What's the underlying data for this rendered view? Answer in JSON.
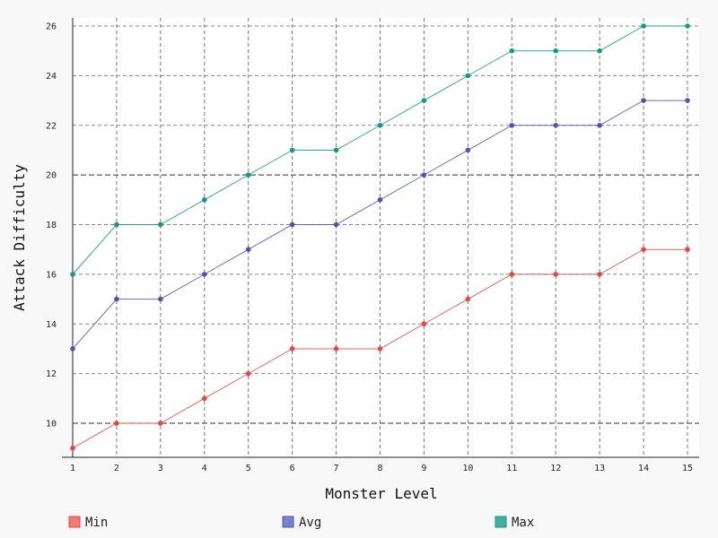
{
  "chart_data": {
    "type": "line",
    "title": "",
    "xlabel": "Monster Level",
    "ylabel": "Attack Difficulty",
    "x": [
      1,
      2,
      3,
      4,
      5,
      6,
      7,
      8,
      9,
      10,
      11,
      12,
      13,
      14,
      15
    ],
    "xlim": [
      1,
      15
    ],
    "ylim": [
      9,
      26
    ],
    "yticks": [
      10,
      12,
      14,
      16,
      18,
      20,
      22,
      24,
      26
    ],
    "major_guides": [
      10,
      20
    ],
    "grid": true,
    "legend_position": "bottom",
    "series": [
      {
        "name": "Min",
        "color": "#e8473f",
        "values": [
          9,
          10,
          10,
          11,
          12,
          13,
          13,
          13,
          14,
          15,
          16,
          16,
          16,
          17,
          17
        ]
      },
      {
        "name": "Avg",
        "color": "#4b55b5",
        "values": [
          13,
          15,
          15,
          16,
          17,
          18,
          18,
          19,
          20,
          21,
          22,
          22,
          22,
          23,
          23
        ]
      },
      {
        "name": "Max",
        "color": "#119a87",
        "values": [
          16,
          18,
          18,
          19,
          20,
          21,
          21,
          22,
          23,
          24,
          25,
          25,
          25,
          26,
          26
        ]
      }
    ]
  },
  "legend": {
    "swatch_colors": [
      "#f07a72",
      "#7582cb",
      "#44ada0"
    ]
  }
}
